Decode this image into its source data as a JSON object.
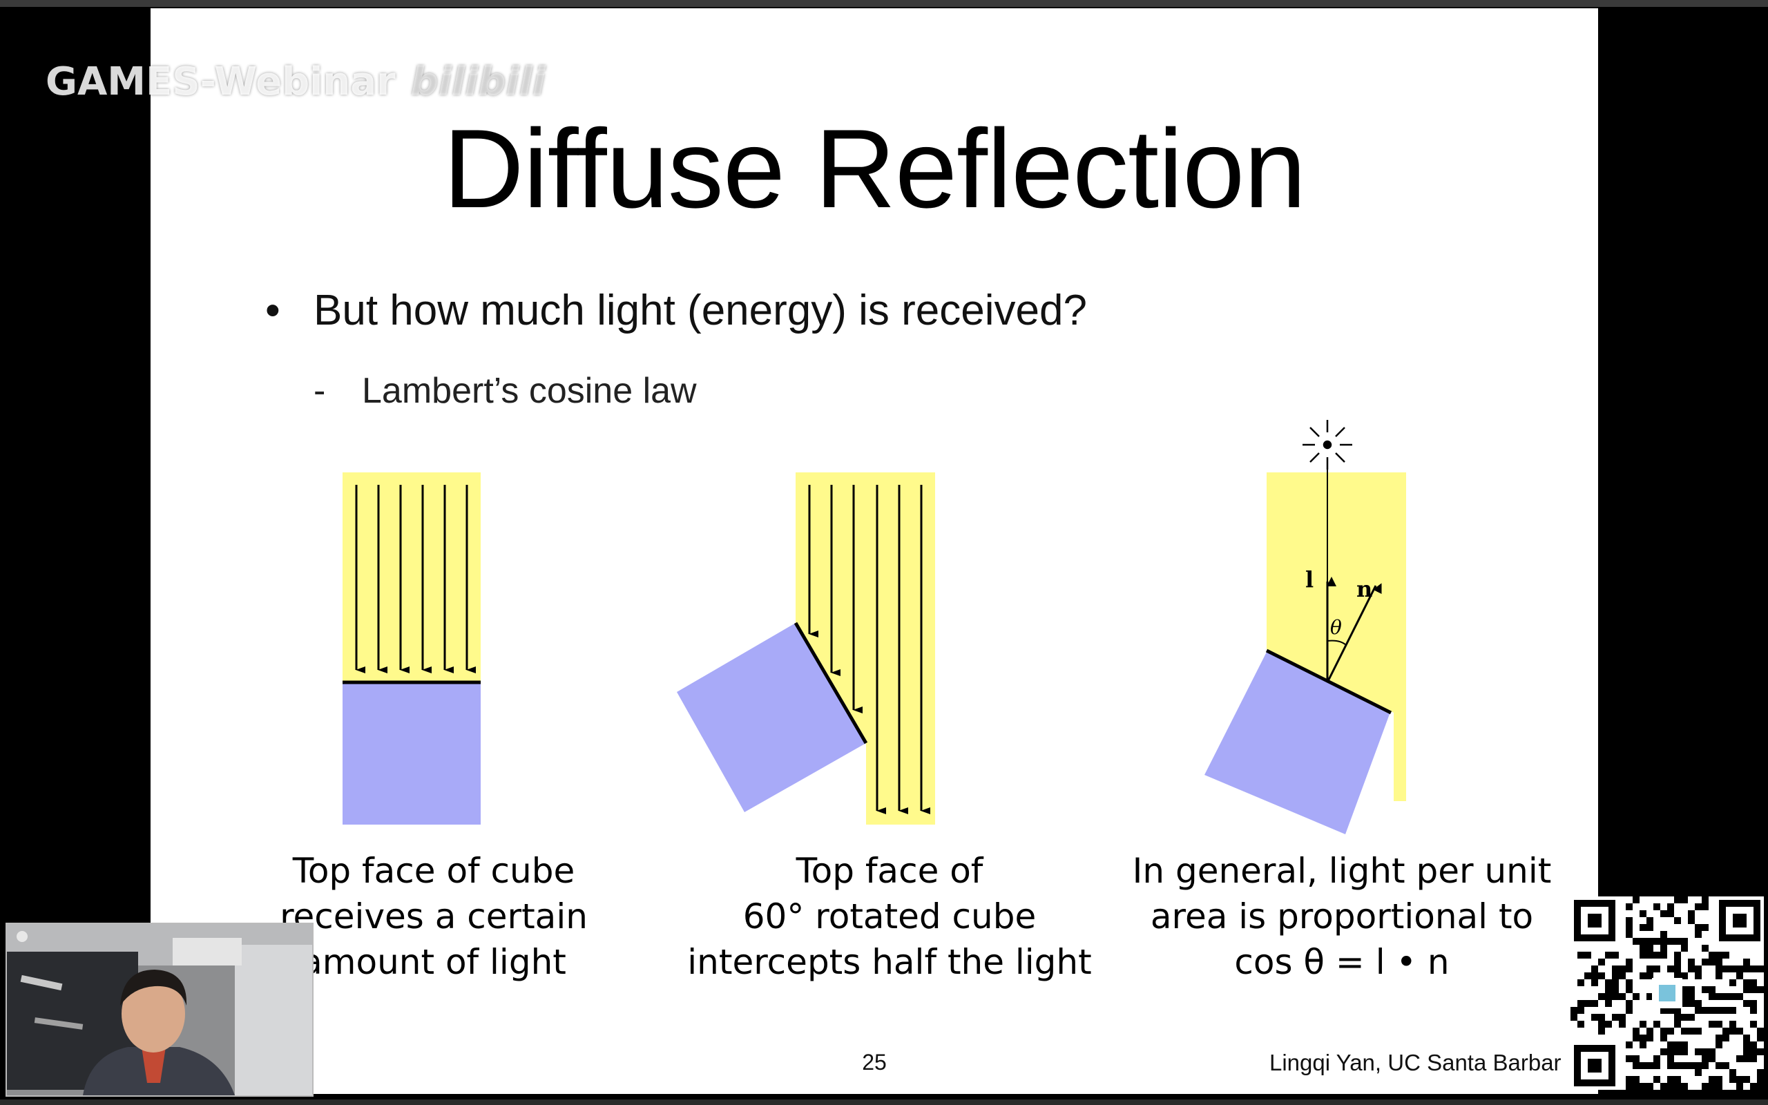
{
  "watermark": {
    "text": "GAMES-Webinar",
    "brand": "bilibili"
  },
  "slide": {
    "title": "Diffuse Reflection",
    "bullet": "But how much light (energy) is received?",
    "bullet_marker": "•",
    "sub_bullet": "Lambert’s cosine law",
    "sub_marker": "-",
    "captions": [
      [
        "Top face of cube",
        "receives a certain",
        "amount of light"
      ],
      [
        "Top face of",
        "60° rotated cube",
        "intercepts half the light"
      ],
      [
        "In general, light per unit",
        "area is proportional to",
        "cos θ = l • n"
      ]
    ],
    "figure_labels": {
      "l": "l",
      "n": "n",
      "theta": "θ"
    },
    "page_number": "25",
    "author": "Lingqi Yan, UC Santa Barbar"
  },
  "colors": {
    "light": "#fffa8c",
    "cube": "#a8aaf8",
    "slide_bg": "#ffffff"
  }
}
